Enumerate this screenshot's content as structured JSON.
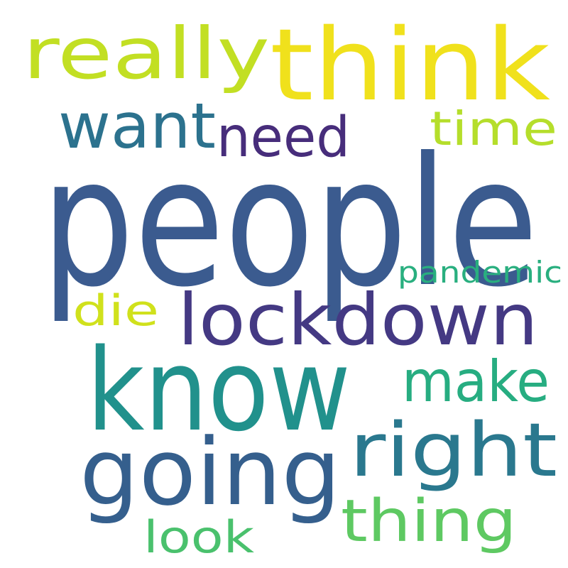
{
  "words": [
    {
      "text": "people",
      "color": "#3b5b8f"
    },
    {
      "text": "know",
      "color": "#21918c"
    },
    {
      "text": "think",
      "color": "#f0e11c"
    },
    {
      "text": "going",
      "color": "#355f8d"
    },
    {
      "text": "lockdown",
      "color": "#443983"
    },
    {
      "text": "really",
      "color": "#c2df23"
    },
    {
      "text": "right",
      "color": "#2a788e"
    },
    {
      "text": "want",
      "color": "#2c728e"
    },
    {
      "text": "thing",
      "color": "#5ec962"
    },
    {
      "text": "make",
      "color": "#27ad81"
    },
    {
      "text": "need",
      "color": "#472d7b"
    },
    {
      "text": "time",
      "color": "#b5de2b"
    },
    {
      "text": "die",
      "color": "#d0e11c"
    },
    {
      "text": "look",
      "color": "#4ac16d"
    },
    {
      "text": "pandemic",
      "color": "#29af7f"
    }
  ]
}
